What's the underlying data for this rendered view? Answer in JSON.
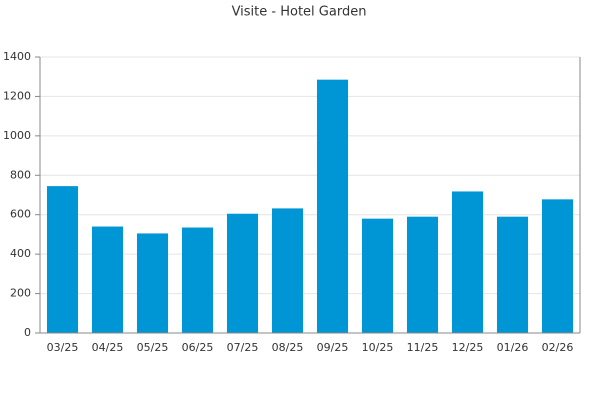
{
  "chart_data": {
    "type": "bar",
    "title": "Visite - Hotel Garden",
    "categories": [
      "03/25",
      "04/25",
      "05/25",
      "06/25",
      "07/25",
      "08/25",
      "09/25",
      "10/25",
      "11/25",
      "12/25",
      "01/26",
      "02/26"
    ],
    "values": [
      745,
      540,
      505,
      535,
      605,
      632,
      1285,
      580,
      590,
      718,
      590,
      678
    ],
    "color": "#0096d6",
    "ylim": [
      0,
      1400
    ],
    "yticks": [
      0,
      200,
      400,
      600,
      800,
      1000,
      1200,
      1400
    ],
    "grid": true
  }
}
